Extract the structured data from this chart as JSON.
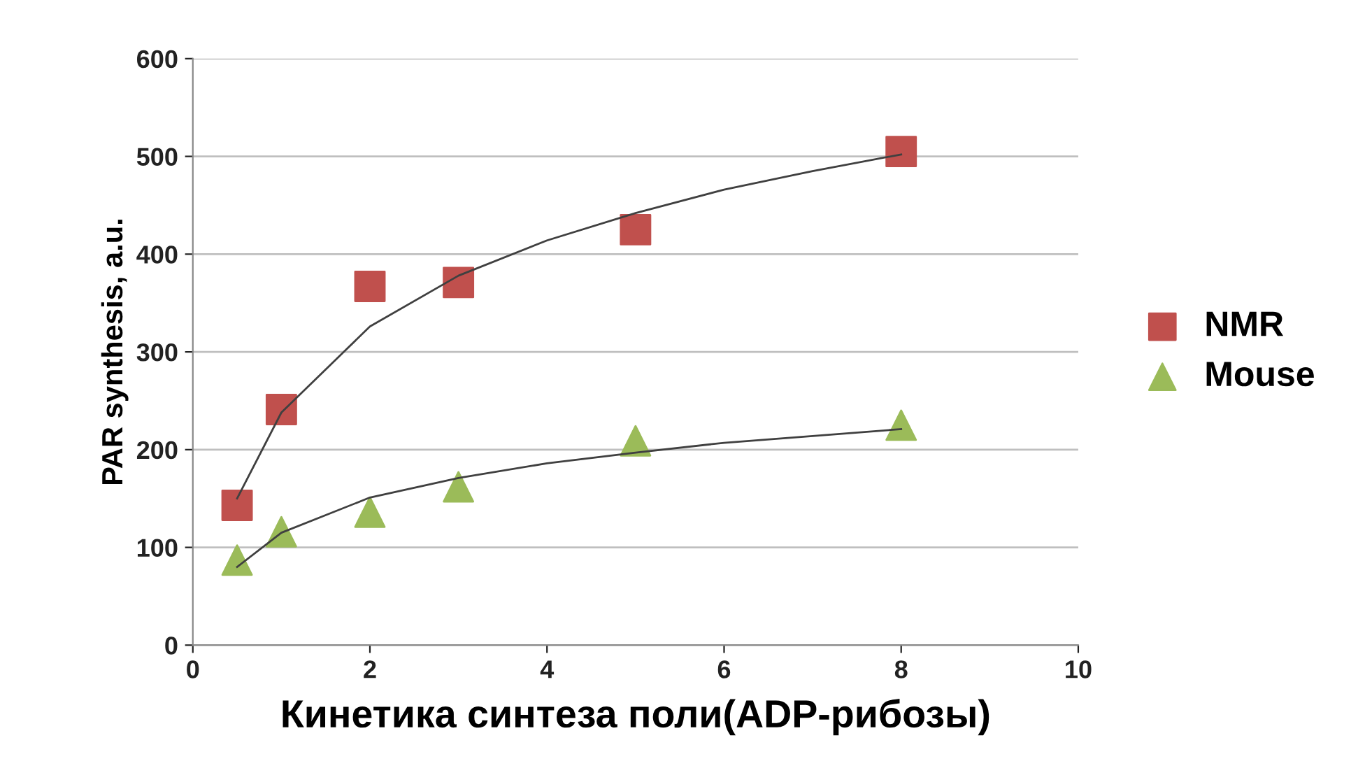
{
  "chart_data": {
    "type": "scatter",
    "xlabel": "Кинетика синтеза поли(ADP-рибозы)",
    "ylabel": "PAR synthesis, a.u.",
    "xlim": [
      0,
      10
    ],
    "xticks": [
      0,
      2,
      4,
      6,
      8,
      10
    ],
    "ylim": [
      0,
      600
    ],
    "yticks": [
      0,
      100,
      200,
      300,
      400,
      500,
      600
    ],
    "grid": "y",
    "legend": "right",
    "series": [
      {
        "name": "NMR",
        "marker": "square",
        "color": "#c0504d",
        "x": [
          0.5,
          1,
          2,
          3,
          5,
          8
        ],
        "values": [
          143,
          241,
          367,
          371,
          425,
          505
        ]
      },
      {
        "name": "Mouse",
        "marker": "triangle",
        "color": "#9bbb59",
        "x": [
          0.5,
          1,
          2,
          3,
          5,
          8
        ],
        "values": [
          87,
          116,
          136,
          162,
          209,
          225
        ]
      },
      {
        "type": "line",
        "marker": "none",
        "color": "#404040",
        "x": [
          0.5,
          1,
          2,
          3,
          4,
          5,
          6,
          7,
          8
        ],
        "values": [
          150,
          238,
          326,
          378,
          414,
          442,
          466,
          485,
          502
        ]
      },
      {
        "type": "line",
        "marker": "none",
        "color": "#404040",
        "x": [
          0.5,
          1,
          2,
          3,
          4,
          5,
          6,
          7,
          8
        ],
        "values": [
          80,
          115,
          151,
          171,
          186,
          197,
          207,
          214,
          221
        ]
      }
    ]
  }
}
